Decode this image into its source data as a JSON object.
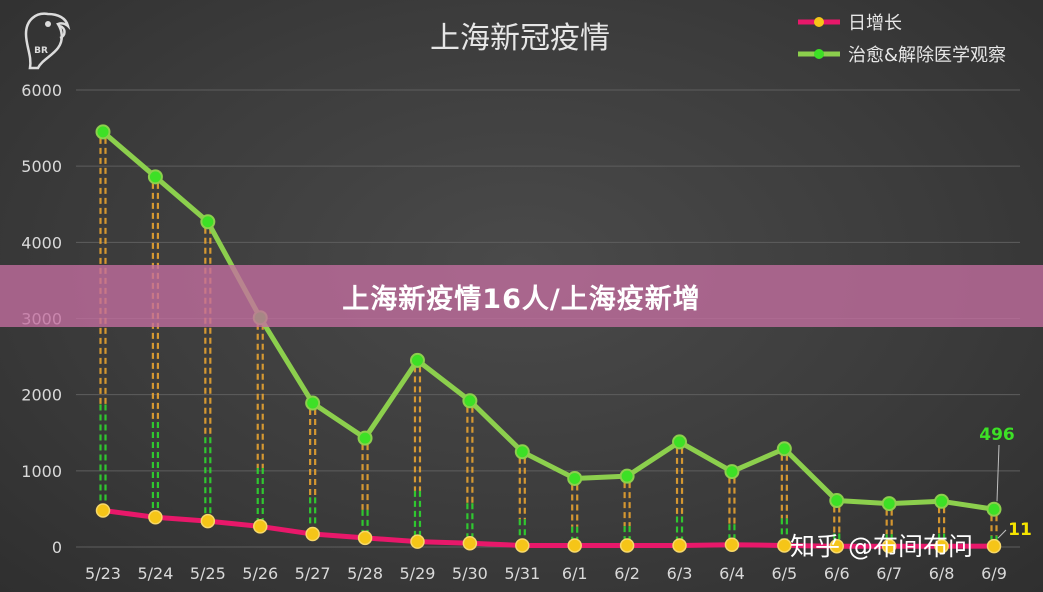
{
  "watermark": "知乎 @布间布问",
  "logo_text": "BR",
  "banner": {
    "text": "上海新疫情16人/上海疫新增"
  },
  "colors": {
    "daily_new": "#e8186a",
    "daily_new_marker": "#f5c518",
    "recovered": "#8ccf4d",
    "recovered_marker": "#3de026",
    "drop_orange": "#f0a830",
    "drop_green": "#2ee02e"
  },
  "chart_data": {
    "type": "line",
    "title": "上海新冠疫情",
    "ylim": [
      0,
      6000
    ],
    "yticks": [
      0,
      1000,
      2000,
      3000,
      4000,
      5000,
      6000
    ],
    "grid": true,
    "legend_position": "top-right",
    "categories": [
      "5/23",
      "5/24",
      "5/25",
      "5/26",
      "5/27",
      "5/28",
      "5/29",
      "5/30",
      "5/31",
      "6/1",
      "6/2",
      "6/3",
      "6/4",
      "6/5",
      "6/6",
      "6/7",
      "6/8",
      "6/9"
    ],
    "series": [
      {
        "name": "日增长",
        "values": [
          480,
          390,
          340,
          270,
          170,
          120,
          70,
          50,
          20,
          20,
          20,
          20,
          30,
          20,
          10,
          10,
          10,
          11
        ]
      },
      {
        "name": "治愈&解除医学观察",
        "values": [
          5450,
          4860,
          4270,
          3010,
          1890,
          1430,
          2450,
          1920,
          1250,
          900,
          930,
          1380,
          990,
          1290,
          610,
          570,
          600,
          496
        ]
      }
    ],
    "annotations": [
      {
        "series": "治愈&解除医学观察",
        "category": "6/9",
        "text": "496"
      },
      {
        "series": "日增长",
        "category": "6/9",
        "text": "11"
      }
    ]
  }
}
